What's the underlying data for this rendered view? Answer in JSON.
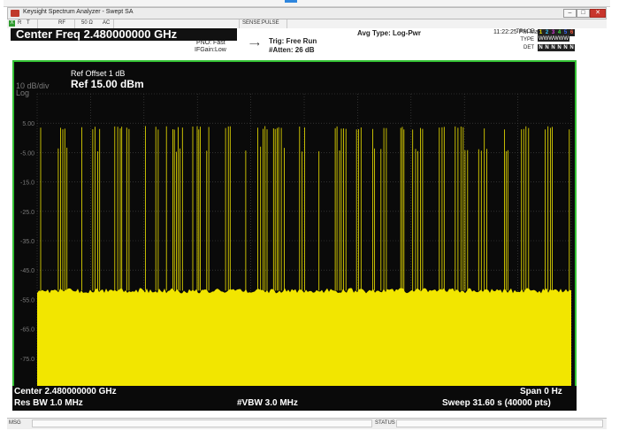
{
  "window": {
    "title": "Keysight Spectrum Analyzer - Swept SA",
    "minimize_glyph": "–",
    "maximize_glyph": "□",
    "close_glyph": "✕"
  },
  "status_line": {
    "mode_flag": "X",
    "r": "R",
    "t": "T",
    "rf": "RF",
    "impedance": "50 Ω",
    "coupling": "AC",
    "sense": "SENSE:PULSE"
  },
  "header": {
    "center_freq": "Center Freq 2.480000000 GHz",
    "pno": "PNO: Fast",
    "ifgain": "IFGain:Low",
    "trig": "Trig: Free Run",
    "atten": "#Atten: 26 dB",
    "avg_type": "Avg Type: Log-Pwr",
    "datetime": "11:22:25 PM Mar 28, 2024",
    "trace_label": "TRACE",
    "type_label": "TYPE",
    "det_label": "DET",
    "trace_values": [
      "1",
      "2",
      "3",
      "4",
      "5",
      "6"
    ],
    "trace_colors": [
      "#f2e600",
      "#36c8ff",
      "#e040e0",
      "#3be13b",
      "#3a6bff",
      "#ff5a3a"
    ],
    "type_value": "WWWWWW",
    "det_values": [
      "N",
      "N",
      "N",
      "N",
      "N",
      "N"
    ]
  },
  "screen": {
    "ref_offset": "Ref Offset 1 dB",
    "scale": "10 dB/div",
    "ref_level": "Ref 15.00 dBm",
    "log_label": "Log",
    "y_tick_labels": [
      "5.00",
      "-5.00",
      "-15.0",
      "-25.0",
      "-35.0",
      "-45.0",
      "-55.0",
      "-65.0",
      "-75.0"
    ],
    "border_color": "#34c234",
    "trace_color": "#f2e600",
    "grid_color": "#4a4a4a"
  },
  "chart_data": {
    "type": "line",
    "title": "",
    "xlabel": "",
    "ylabel": "",
    "ylim": [
      -85,
      15
    ],
    "grid": true,
    "y_ticks": [
      5,
      -5,
      -15,
      -25,
      -35,
      -45,
      -55,
      -65,
      -75
    ],
    "series": [
      {
        "noise_floor_dbm": -52,
        "burst_peak_dbm": 4,
        "secondary_level_dbm": -3
      }
    ]
  },
  "footer": {
    "center": "Center 2.480000000 GHz",
    "span": "Span 0 Hz",
    "res_bw": "Res BW 1.0 MHz",
    "vbw": "#VBW 3.0 MHz",
    "sweep": "Sweep  31.60 s (40000 pts)"
  },
  "statusbar": {
    "msg": "MSG",
    "status": "STATUS"
  }
}
